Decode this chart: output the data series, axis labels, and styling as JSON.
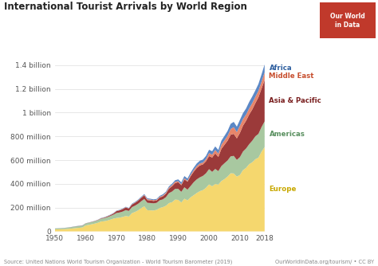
{
  "title": "International Tourist Arrivals by World Region",
  "years": [
    1950,
    1951,
    1952,
    1953,
    1954,
    1955,
    1956,
    1957,
    1958,
    1959,
    1960,
    1961,
    1962,
    1963,
    1964,
    1965,
    1966,
    1967,
    1968,
    1969,
    1970,
    1971,
    1972,
    1973,
    1974,
    1975,
    1976,
    1977,
    1978,
    1979,
    1980,
    1981,
    1982,
    1983,
    1984,
    1985,
    1986,
    1987,
    1988,
    1989,
    1990,
    1991,
    1992,
    1993,
    1994,
    1995,
    1996,
    1997,
    1998,
    1999,
    2000,
    2001,
    2002,
    2003,
    2004,
    2005,
    2006,
    2007,
    2008,
    2009,
    2010,
    2011,
    2012,
    2013,
    2014,
    2015,
    2016,
    2017,
    2018
  ],
  "europe": [
    16.8,
    17.5,
    18.4,
    19.5,
    20.9,
    23.2,
    25.8,
    28.9,
    30.7,
    33.8,
    50.4,
    55.1,
    60.7,
    66.1,
    73.2,
    83.4,
    85.9,
    91.5,
    99.1,
    107.7,
    113.0,
    116.2,
    121.7,
    130.3,
    124.9,
    153.9,
    163.8,
    177.4,
    195.6,
    211.6,
    178.5,
    177.2,
    176.2,
    181.4,
    197.2,
    204.3,
    215.5,
    238.4,
    245.9,
    268.0,
    265.4,
    243.2,
    275.4,
    261.5,
    286.6,
    304.5,
    323.3,
    338.7,
    347.7,
    367.0,
    395.9,
    379.8,
    399.3,
    394.3,
    424.4,
    440.7,
    461.5,
    489.4,
    487.8,
    461.5,
    475.3,
    516.4,
    534.8,
    566.4,
    581.8,
    607.7,
    620.8,
    671.0,
    710.0
  ],
  "americas": [
    7.5,
    8.0,
    8.5,
    9.0,
    9.8,
    11.0,
    12.5,
    13.5,
    14.0,
    14.8,
    16.7,
    17.5,
    18.5,
    19.3,
    21.0,
    23.5,
    25.8,
    28.3,
    30.5,
    33.0,
    42.0,
    43.2,
    45.3,
    49.0,
    47.5,
    50.1,
    52.9,
    55.1,
    58.0,
    61.3,
    62.3,
    61.7,
    60.0,
    59.0,
    64.8,
    65.1,
    72.6,
    83.8,
    89.7,
    90.2,
    92.8,
    89.9,
    96.2,
    89.8,
    95.1,
    108.9,
    114.5,
    116.1,
    119.5,
    122.2,
    128.2,
    121.2,
    126.7,
    113.1,
    125.7,
    133.3,
    135.8,
    142.5,
    148.0,
    140.5,
    149.8,
    156.0,
    163.1,
    167.5,
    181.6,
    192.6,
    199.9,
    207.0,
    216.0
  ],
  "asia_pacific": [
    0.2,
    0.3,
    0.4,
    0.5,
    0.6,
    0.7,
    0.9,
    1.1,
    1.3,
    1.6,
    1.0,
    1.2,
    1.4,
    1.8,
    2.3,
    3.0,
    4.0,
    5.5,
    7.0,
    9.2,
    16.0,
    18.0,
    20.5,
    22.4,
    20.0,
    22.0,
    24.1,
    26.5,
    28.9,
    31.0,
    23.0,
    21.8,
    20.4,
    20.1,
    22.8,
    25.6,
    29.3,
    37.5,
    44.1,
    48.6,
    55.8,
    55.9,
    67.0,
    67.3,
    82.0,
    88.3,
    96.1,
    100.2,
    97.2,
    101.7,
    110.1,
    121.0,
    131.1,
    119.3,
    145.2,
    155.4,
    166.1,
    182.1,
    185.5,
    181.3,
    204.0,
    218.2,
    233.6,
    249.8,
    263.3,
    279.2,
    308.4,
    323.0,
    347.7
  ],
  "middle_east": [
    0.05,
    0.06,
    0.07,
    0.08,
    0.1,
    0.12,
    0.15,
    0.18,
    0.2,
    0.25,
    0.3,
    0.4,
    0.6,
    0.9,
    1.2,
    1.5,
    1.8,
    2.0,
    2.3,
    2.7,
    1.9,
    2.1,
    2.4,
    2.6,
    2.2,
    2.5,
    2.8,
    3.2,
    3.6,
    4.1,
    7.5,
    7.0,
    6.5,
    6.0,
    6.8,
    7.1,
    8.1,
    9.5,
    10.5,
    11.8,
    9.0,
    7.7,
    9.2,
    8.0,
    11.3,
    13.7,
    15.2,
    16.8,
    15.1,
    18.1,
    24.9,
    24.1,
    28.4,
    28.2,
    35.1,
    37.8,
    40.9,
    47.3,
    56.3,
    52.7,
    60.3,
    55.4,
    51.7,
    51.6,
    53.3,
    53.6,
    54.0,
    57.8,
    64.5
  ],
  "africa": [
    0.5,
    0.6,
    0.7,
    0.8,
    0.9,
    1.0,
    1.1,
    1.2,
    1.3,
    1.5,
    0.8,
    0.9,
    1.0,
    1.2,
    1.5,
    1.8,
    2.1,
    2.3,
    2.5,
    2.8,
    2.4,
    2.7,
    3.1,
    3.5,
    3.2,
    4.7,
    5.0,
    5.4,
    5.9,
    6.5,
    7.2,
    7.1,
    7.0,
    7.1,
    7.5,
    9.7,
    8.5,
    9.8,
    11.5,
    12.1,
    15.0,
    16.3,
    18.2,
    18.6,
    18.8,
    20.0,
    22.4,
    23.2,
    25.2,
    26.4,
    28.2,
    29.0,
    30.0,
    30.7,
    33.5,
    36.9,
    41.4,
    44.4,
    44.4,
    45.8,
    49.4,
    49.8,
    52.0,
    54.4,
    55.7,
    53.5,
    57.8,
    62.1,
    67.1
  ],
  "colors": {
    "europe": "#F5D76E",
    "americas": "#A8C8A0",
    "asia_pacific": "#9B3A3A",
    "middle_east": "#E8856A",
    "africa": "#5B87C5"
  },
  "label_colors": {
    "europe": "#c8a800",
    "americas": "#5a9060",
    "asia_pacific": "#7a2020",
    "middle_east": "#c85030",
    "africa": "#3060a0"
  },
  "ylim": [
    0,
    1500000000
  ],
  "yticks": [
    0,
    200000000,
    400000000,
    600000000,
    800000000,
    1000000000,
    1200000000,
    1400000000
  ],
  "ytick_labels": [
    "0",
    "200 million",
    "400 million",
    "600 million",
    "800 million",
    "1 billion",
    "1.2 billion",
    "1.4 billion"
  ],
  "xlabel_years": [
    1950,
    1960,
    1970,
    1980,
    1990,
    2000,
    2010,
    2018
  ],
  "source_text": "Source: United Nations World Tourism Organization - World Tourism Barometer (2019)",
  "credit_text": "OurWorldInData.org/tourism/ • CC BY",
  "background_color": "#FFFFFF",
  "logo_bg": "#C0392B",
  "logo_text": "Our World\nin Data"
}
